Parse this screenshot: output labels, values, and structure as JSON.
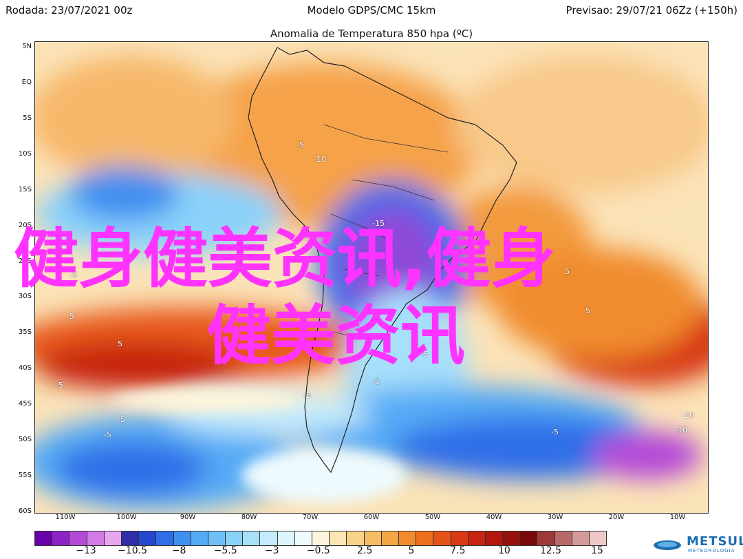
{
  "header": {
    "rodada": "Rodada: 23/07/2021 00z",
    "modelo": "Modelo GDPS/CMC 15km",
    "previsao": "Previsao: 29/07/21 06Zz (+150h)"
  },
  "map_title": "Anomalia de Temperatura 850 hpa (ºC)",
  "latitude_labels": [
    "5N",
    "EQ",
    "5S",
    "10S",
    "15S",
    "20S",
    "25S",
    "30S",
    "35S",
    "40S",
    "45S",
    "50S",
    "55S",
    "60S"
  ],
  "longitude_labels": [
    "110W",
    "100W",
    "90W",
    "80W",
    "70W",
    "60W",
    "50W",
    "40W",
    "30W",
    "20W",
    "10W"
  ],
  "contour_labels": [
    "-5",
    "-10",
    "-15",
    "-10",
    "-5",
    "5",
    "5",
    "5",
    "5",
    "-5",
    "-5",
    "-5",
    "-5",
    "-5",
    "-5",
    "-5",
    "-10",
    "-10"
  ],
  "colorbar": {
    "labels": [
      "−13",
      "−10.5",
      "−8",
      "−5.5",
      "−3",
      "−0.5",
      "2.5",
      "5",
      "7.5",
      "10",
      "12.5",
      "15"
    ],
    "colors": [
      "#6a00a8",
      "#8e24c8",
      "#b44ad8",
      "#d27be6",
      "#e8a6f0",
      "#2e2ea8",
      "#2448d0",
      "#2f6ee8",
      "#3f8ff0",
      "#55aaf5",
      "#6ec0f7",
      "#8ad2fa",
      "#a7e0fb",
      "#c4ecfc",
      "#ddf5fd",
      "#eefafe",
      "#fdf5dc",
      "#fbe7b4",
      "#f8d38a",
      "#f6be62",
      "#f3a644",
      "#f08c2e",
      "#ec7020",
      "#e45418",
      "#d83a14",
      "#c62410",
      "#b2180e",
      "#96100c",
      "#7a0a0a",
      "#9c3a3a",
      "#b86a6a",
      "#d49a9a",
      "#f0c8c8"
    ]
  },
  "logo": {
    "name": "METSUL",
    "sub": "METEOROLOGIA"
  },
  "watermark": {
    "line1": "健身健美资讯,健身",
    "line2": "健美资讯"
  },
  "colors": {
    "watermark": "#ff33ff",
    "logo": "#1e6fb0"
  }
}
